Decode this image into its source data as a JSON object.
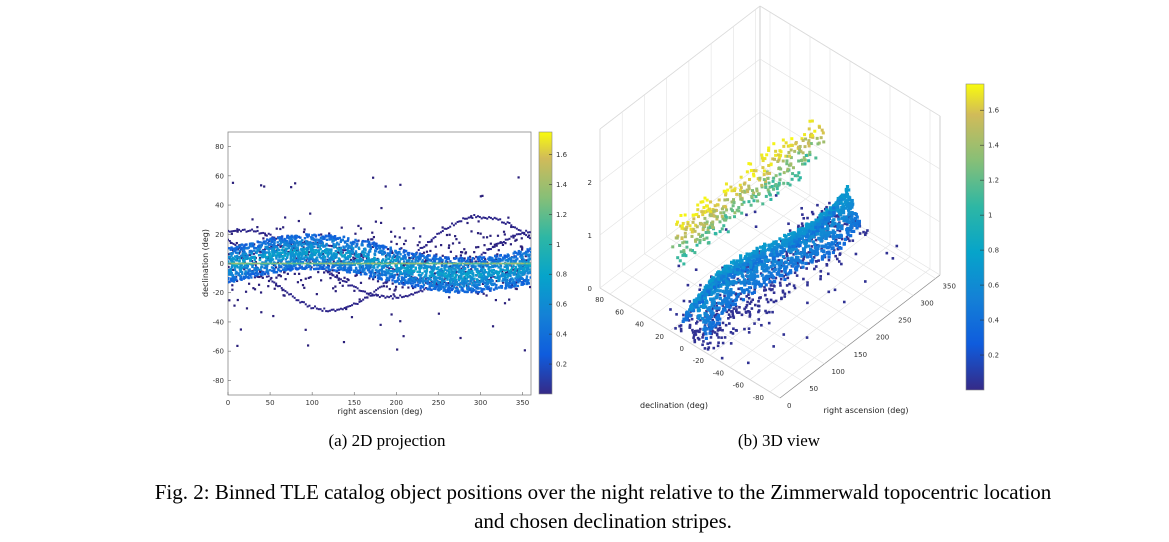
{
  "chart_data": [
    {
      "type": "scatter",
      "subcaption": "(a) 2D projection",
      "xlabel": "right ascension (deg)",
      "ylabel": "declination (deg)",
      "xlim": [
        0,
        360
      ],
      "ylim": [
        -90,
        90
      ],
      "xticks": [
        "0",
        "50",
        "100",
        "150",
        "200",
        "250",
        "300",
        "350"
      ],
      "yticks": [
        "80",
        "60",
        "40",
        "20",
        "0",
        "-20",
        "-40",
        "-60",
        "-80"
      ],
      "colorbar": {
        "min": 0,
        "max": 1.75,
        "ticks": [
          "1.6",
          "1.4",
          "1.2",
          "1",
          "0.8",
          "0.6",
          "0.4",
          "0.2"
        ]
      },
      "band": {
        "center_amplitude": 8,
        "half_width": 12
      },
      "grid": false
    },
    {
      "type": "scatter3d",
      "subcaption": "(b) 3D view",
      "xlabel": "declination (deg)",
      "ylabel": "right ascension (deg)",
      "dec_ticks": [
        "80",
        "60",
        "40",
        "20",
        "0",
        "-20",
        "-40",
        "-60",
        "-80"
      ],
      "ra_ticks": [
        "0",
        "50",
        "100",
        "150",
        "200",
        "250",
        "300",
        "350"
      ],
      "z_ticks": [
        "0",
        "1",
        "2"
      ],
      "colorbar": {
        "min": 0,
        "max": 1.75,
        "ticks": [
          "1.6",
          "1.4",
          "1.2",
          "1",
          "0.8",
          "0.6",
          "0.4",
          "0.2"
        ]
      },
      "grid": true
    }
  ],
  "caption": {
    "line1": "Fig. 2: Binned TLE catalog object positions over the night relative to the Zimmerwald topocentric location",
    "line2": "and chosen declination stripes."
  }
}
